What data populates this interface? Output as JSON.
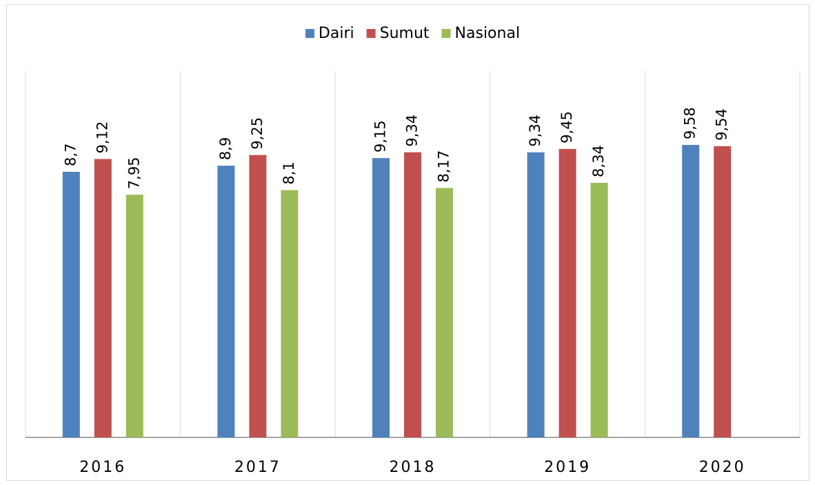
{
  "chart_data": {
    "type": "bar",
    "categories": [
      "2016",
      "2017",
      "2018",
      "2019",
      "2020"
    ],
    "series": [
      {
        "name": "Dairi",
        "color": "#4f81bd",
        "values": [
          8.7,
          8.9,
          9.15,
          9.34,
          9.58
        ],
        "value_labels": [
          "8,7",
          "8,9",
          "9,15",
          "9,34",
          "9,58"
        ]
      },
      {
        "name": "Sumut",
        "color": "#c0504d",
        "values": [
          9.12,
          9.25,
          9.34,
          9.45,
          9.54
        ],
        "value_labels": [
          "9,12",
          "9,25",
          "9,34",
          "9,45",
          "9,54"
        ]
      },
      {
        "name": "Nasional",
        "color": "#9bbb59",
        "values": [
          7.95,
          8.1,
          8.17,
          8.34,
          null
        ],
        "value_labels": [
          "7,95",
          "8,1",
          "8,17",
          "8,34",
          null
        ]
      }
    ],
    "ylim": [
      0,
      12
    ],
    "legend": "top"
  }
}
